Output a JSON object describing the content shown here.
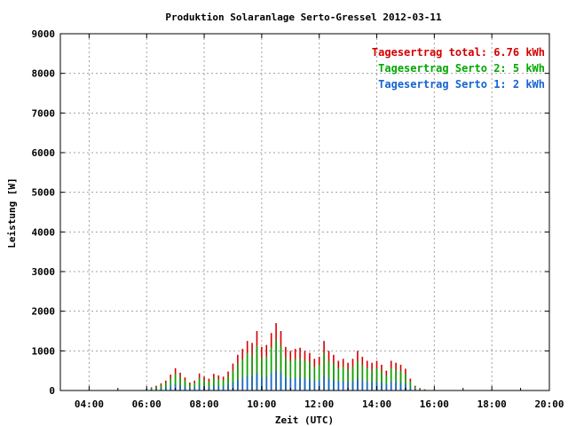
{
  "chart_data": {
    "type": "bar",
    "title": "Produktion Solaranlage Serto-Gressel 2012-03-11",
    "xlabel": "Zeit (UTC)",
    "ylabel": "Leistung [W]",
    "xlim": [
      3.0,
      20.0
    ],
    "ylim": [
      0,
      9000
    ],
    "grid": true,
    "legend_position": "top-right",
    "x_ticks": [
      {
        "value": 4,
        "label": "04:00"
      },
      {
        "value": 6,
        "label": "06:00"
      },
      {
        "value": 8,
        "label": "08:00"
      },
      {
        "value": 10,
        "label": "10:00"
      },
      {
        "value": 12,
        "label": "12:00"
      },
      {
        "value": 14,
        "label": "14:00"
      },
      {
        "value": 16,
        "label": "16:00"
      },
      {
        "value": 18,
        "label": "18:00"
      },
      {
        "value": 20,
        "label": "20:00"
      }
    ],
    "y_ticks": [
      0,
      1000,
      2000,
      3000,
      4000,
      5000,
      6000,
      7000,
      8000,
      9000
    ],
    "legend": [
      {
        "label": "Tagesertrag total: 6.76 kWh",
        "color": "#d40000"
      },
      {
        "label": "Tagesertrag Serto 2: 5 kWh",
        "color": "#00a800"
      },
      {
        "label": "Tagesertrag Serto 1: 2 kWh",
        "color": "#1464d2"
      }
    ],
    "series_colors": {
      "total": "#d40000",
      "serto2": "#00a800",
      "serto1": "#1464d2"
    },
    "times": [
      "06:00",
      "06:10",
      "06:20",
      "06:30",
      "06:40",
      "06:50",
      "07:00",
      "07:10",
      "07:20",
      "07:30",
      "07:40",
      "07:50",
      "08:00",
      "08:10",
      "08:20",
      "08:30",
      "08:40",
      "08:50",
      "09:00",
      "09:10",
      "09:20",
      "09:30",
      "09:40",
      "09:50",
      "10:00",
      "10:10",
      "10:20",
      "10:30",
      "10:40",
      "10:50",
      "11:00",
      "11:10",
      "11:20",
      "11:30",
      "11:40",
      "11:50",
      "12:00",
      "12:10",
      "12:20",
      "12:30",
      "12:40",
      "12:50",
      "13:00",
      "13:10",
      "13:20",
      "13:30",
      "13:40",
      "13:50",
      "14:00",
      "14:10",
      "14:20",
      "14:30",
      "14:40",
      "14:50",
      "15:00",
      "15:10",
      "15:20",
      "15:30",
      "15:40",
      "15:50",
      "16:00",
      "16:10",
      "16:20",
      "16:30"
    ],
    "series": [
      {
        "name": "Tagesertrag total: 6.76 kWh",
        "key": "total",
        "values": [
          50,
          80,
          120,
          180,
          250,
          400,
          560,
          450,
          330,
          200,
          250,
          430,
          350,
          300,
          420,
          380,
          350,
          480,
          680,
          900,
          1050,
          1250,
          1200,
          1500,
          1100,
          1150,
          1450,
          1700,
          1500,
          1100,
          1000,
          1050,
          1080,
          1000,
          950,
          800,
          850,
          1250,
          1000,
          900,
          750,
          800,
          700,
          800,
          1000,
          850,
          750,
          700,
          750,
          650,
          500,
          750,
          700,
          650,
          550,
          300,
          120,
          60,
          30,
          10,
          0,
          0,
          0,
          0
        ]
      },
      {
        "name": "Tagesertrag Serto 2: 5 kWh",
        "key": "serto2",
        "values": [
          40,
          60,
          90,
          130,
          190,
          300,
          420,
          340,
          250,
          150,
          190,
          320,
          260,
          225,
          315,
          285,
          260,
          360,
          510,
          675,
          780,
          940,
          900,
          1120,
          820,
          860,
          1090,
          1280,
          1120,
          820,
          750,
          790,
          810,
          750,
          710,
          600,
          640,
          940,
          750,
          675,
          560,
          600,
          525,
          600,
          750,
          640,
          560,
          525,
          560,
          490,
          375,
          560,
          525,
          490,
          410,
          225,
          90,
          45,
          22,
          8,
          0,
          0,
          0,
          0
        ]
      },
      {
        "name": "Tagesertrag Serto 1: 2 kWh",
        "key": "serto1",
        "values": [
          15,
          25,
          35,
          55,
          75,
          120,
          170,
          135,
          100,
          60,
          75,
          130,
          105,
          90,
          125,
          115,
          105,
          145,
          205,
          270,
          315,
          375,
          360,
          450,
          330,
          345,
          435,
          510,
          450,
          330,
          300,
          315,
          325,
          300,
          285,
          240,
          255,
          375,
          300,
          270,
          225,
          240,
          210,
          240,
          300,
          255,
          225,
          210,
          225,
          195,
          150,
          225,
          210,
          195,
          165,
          90,
          36,
          18,
          9,
          3,
          0,
          0,
          0,
          0
        ]
      }
    ]
  }
}
